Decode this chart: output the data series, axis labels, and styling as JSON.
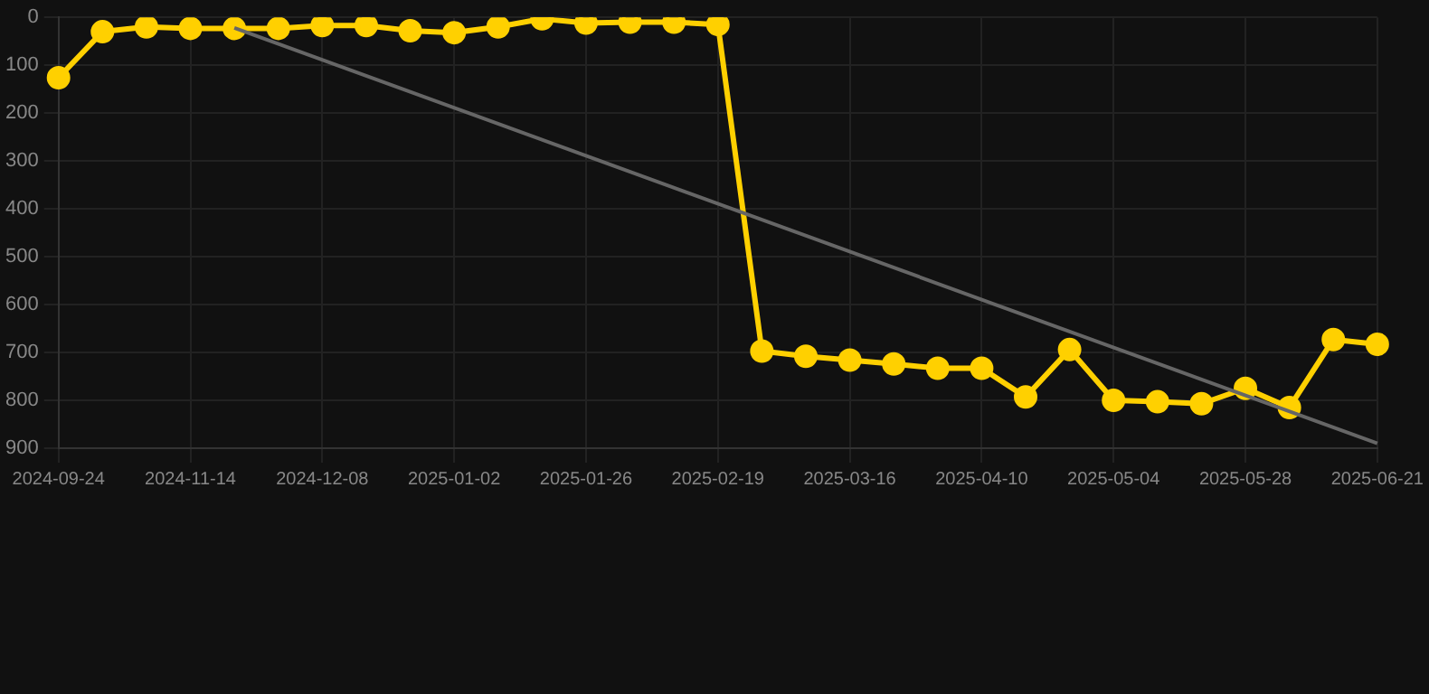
{
  "chart_data": {
    "type": "line",
    "categories": [
      "2024-09-24",
      null,
      null,
      "2024-11-14",
      null,
      null,
      "2024-12-08",
      null,
      null,
      "2025-01-02",
      null,
      null,
      "2025-01-26",
      null,
      null,
      "2025-02-19",
      null,
      null,
      "2025-03-16",
      null,
      null,
      "2025-04-10",
      null,
      null,
      "2025-05-04",
      null,
      null,
      "2025-05-28",
      null,
      null,
      "2025-06-21"
    ],
    "series": [
      {
        "color": "#ffd000",
        "marker": "circle",
        "values": [
          126,
          30,
          20,
          23,
          23,
          23,
          17,
          17,
          28,
          32,
          20,
          3,
          12,
          10,
          10,
          15,
          697,
          708,
          716,
          724,
          733,
          733,
          793,
          694,
          800,
          803,
          807,
          775,
          815,
          673,
          683
        ]
      },
      {
        "color": "#666666",
        "marker": "none",
        "values": [
          null,
          null,
          null,
          null,
          22,
          null,
          null,
          null,
          null,
          null,
          null,
          null,
          null,
          null,
          null,
          null,
          null,
          null,
          null,
          null,
          null,
          null,
          null,
          null,
          null,
          null,
          null,
          null,
          null,
          null,
          890
        ]
      }
    ],
    "ylim": [
      900,
      0
    ],
    "yticks": [
      0,
      100,
      200,
      300,
      400,
      500,
      600,
      700,
      800,
      900
    ],
    "grid": true
  }
}
